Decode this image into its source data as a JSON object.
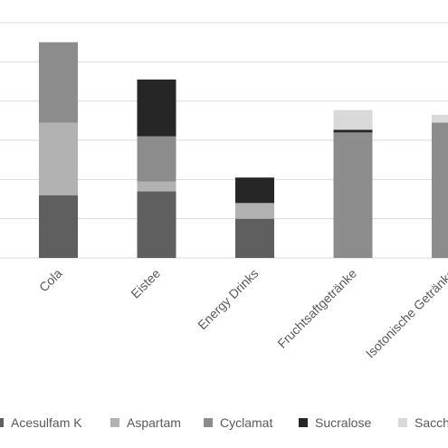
{
  "chart_data": {
    "type": "bar",
    "stacked": true,
    "categories": [
      "Cola",
      "Eistee",
      "Energy Drinks",
      "Fruchtsaftgetränke",
      "Isotonische Getränke"
    ],
    "series": [
      {
        "name": "Acesulfam K",
        "color": "#5f5f5f",
        "values": [
          1.6,
          1.7,
          1.0,
          0,
          0
        ]
      },
      {
        "name": "Aspartam",
        "color": "#b2b2b2",
        "values": [
          1.85,
          0.25,
          0.4,
          0,
          0
        ]
      },
      {
        "name": "Cyclamat",
        "color": "#8c8c8c",
        "values": [
          2.05,
          1.15,
          0,
          3.2,
          3.45
        ]
      },
      {
        "name": "Sucralose",
        "color": "#262626",
        "values": [
          0,
          1.45,
          0.65,
          0.07,
          0
        ]
      },
      {
        "name": "Saccharin",
        "color": "#d9d9d9",
        "values": [
          0,
          0,
          0,
          0.5,
          0.2
        ]
      }
    ],
    "legend_labels": [
      "Acesulfam K",
      "Aspartam",
      "Cyclamat",
      "Sucralose",
      "Sacch"
    ],
    "ylim": [
      0,
      6
    ],
    "grid": true,
    "legend": "bottom"
  }
}
